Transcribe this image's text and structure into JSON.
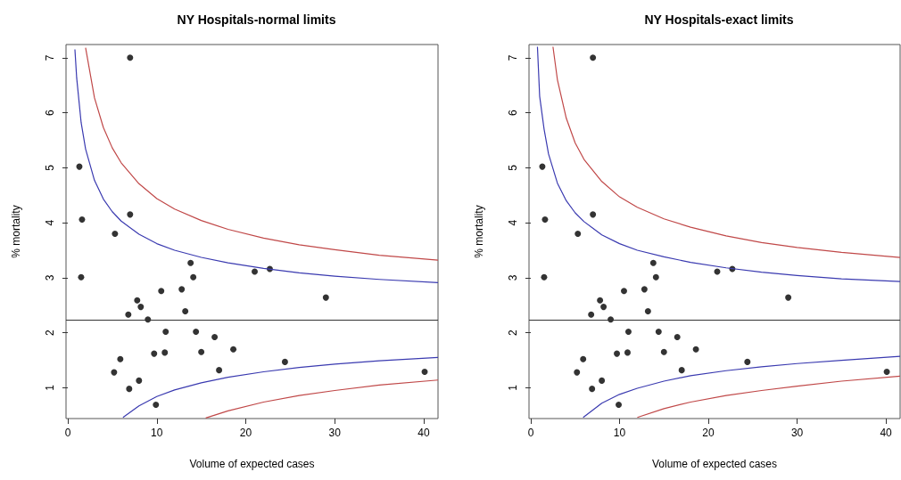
{
  "chart_data": [
    {
      "type": "scatter",
      "title": "NY Hospitals-normal limits",
      "xlabel": "Volume of expected cases",
      "ylabel": "% mortality",
      "xlim": [
        -0.2,
        41.6
      ],
      "ylim": [
        0.44,
        7.24
      ],
      "xticks": [
        0,
        10,
        20,
        30,
        40
      ],
      "yticks": [
        1,
        2,
        3,
        4,
        5,
        6,
        7
      ],
      "grid": false,
      "marker": "circle",
      "ref_lines": [
        {
          "axis": "y",
          "value": 2.23,
          "color": "#333333"
        }
      ],
      "series": [
        {
          "color": "#000000",
          "x": [
            7.0,
            1.3,
            1.6,
            7.0,
            5.3,
            1.5,
            13.8,
            14.1,
            21.0,
            22.7,
            29.0,
            10.5,
            12.8,
            7.8,
            8.2,
            6.8,
            13.2,
            9.0,
            11.0,
            14.4,
            16.5,
            18.6,
            9.7,
            10.9,
            15.0,
            5.9,
            5.2,
            8.0,
            6.9,
            9.9,
            17.0,
            24.4,
            40.1
          ],
          "values": [
            7.0,
            5.02,
            4.06,
            4.15,
            3.8,
            3.01,
            3.27,
            3.01,
            3.11,
            3.16,
            2.64,
            2.76,
            2.79,
            2.59,
            2.47,
            2.33,
            2.39,
            2.24,
            2.02,
            2.02,
            1.92,
            1.7,
            1.62,
            1.64,
            1.65,
            1.52,
            1.28,
            1.13,
            0.98,
            0.69,
            1.32,
            1.47,
            1.29
          ]
        },
        {
          "type": "line",
          "marker": "none",
          "color": "#3a3ab0",
          "x": [
            0.8,
            1,
            1.5,
            2,
            3,
            4,
            5,
            6,
            8,
            10,
            12,
            15,
            18,
            22,
            26,
            30,
            35,
            41.6
          ],
          "values": [
            7.15,
            6.63,
            5.82,
            5.34,
            4.77,
            4.43,
            4.2,
            4.03,
            3.79,
            3.62,
            3.5,
            3.37,
            3.27,
            3.17,
            3.09,
            3.03,
            2.97,
            2.91
          ]
        },
        {
          "type": "line",
          "marker": "none",
          "color": "#c04848",
          "x": [
            2,
            3,
            4,
            5,
            6,
            8,
            10,
            12,
            15,
            18,
            22,
            26,
            30,
            35,
            41.6
          ],
          "values": [
            7.18,
            6.27,
            5.73,
            5.36,
            5.09,
            4.71,
            4.44,
            4.25,
            4.04,
            3.88,
            3.72,
            3.6,
            3.51,
            3.41,
            3.32
          ]
        },
        {
          "type": "line",
          "marker": "none",
          "color": "#3a3ab0",
          "x": [
            6.2,
            8,
            10,
            12,
            15,
            18,
            22,
            26,
            30,
            35,
            41.6
          ],
          "values": [
            0.46,
            0.67,
            0.84,
            0.96,
            1.09,
            1.19,
            1.29,
            1.37,
            1.43,
            1.49,
            1.55
          ]
        },
        {
          "type": "line",
          "marker": "none",
          "color": "#c04848",
          "x": [
            15.5,
            18,
            22,
            26,
            30,
            35,
            41.6
          ],
          "values": [
            0.45,
            0.58,
            0.74,
            0.86,
            0.95,
            1.05,
            1.14
          ]
        }
      ]
    },
    {
      "type": "scatter",
      "title": "NY Hospitals-exact limits",
      "xlabel": "Volume of expected cases",
      "ylabel": "% mortality",
      "xlim": [
        -0.2,
        41.6
      ],
      "ylim": [
        0.44,
        7.24
      ],
      "xticks": [
        0,
        10,
        20,
        30,
        40
      ],
      "yticks": [
        1,
        2,
        3,
        4,
        5,
        6,
        7
      ],
      "grid": false,
      "marker": "circle",
      "ref_lines": [
        {
          "axis": "y",
          "value": 2.23,
          "color": "#333333"
        }
      ],
      "series": [
        {
          "color": "#000000",
          "x": [
            7.0,
            1.3,
            1.6,
            7.0,
            5.3,
            1.5,
            13.8,
            14.1,
            21.0,
            22.7,
            29.0,
            10.5,
            12.8,
            7.8,
            8.2,
            6.8,
            13.2,
            9.0,
            11.0,
            14.4,
            16.5,
            18.6,
            9.7,
            10.9,
            15.0,
            5.9,
            5.2,
            8.0,
            6.9,
            9.9,
            17.0,
            24.4,
            40.1
          ],
          "values": [
            7.0,
            5.02,
            4.06,
            4.15,
            3.8,
            3.01,
            3.27,
            3.01,
            3.11,
            3.16,
            2.64,
            2.76,
            2.79,
            2.59,
            2.47,
            2.33,
            2.39,
            2.24,
            2.02,
            2.02,
            1.92,
            1.7,
            1.62,
            1.64,
            1.65,
            1.52,
            1.28,
            1.13,
            0.98,
            0.69,
            1.32,
            1.47,
            1.29
          ]
        },
        {
          "type": "line",
          "marker": "none",
          "color": "#3a3ab0",
          "x": [
            0.75,
            1,
            1.5,
            2,
            3,
            4,
            5,
            6,
            8,
            10,
            12,
            15,
            18,
            22,
            26,
            30,
            35,
            41.6
          ],
          "values": [
            7.2,
            6.3,
            5.7,
            5.25,
            4.72,
            4.4,
            4.18,
            4.02,
            3.78,
            3.62,
            3.5,
            3.38,
            3.28,
            3.18,
            3.1,
            3.04,
            2.98,
            2.93
          ]
        },
        {
          "type": "line",
          "marker": "none",
          "color": "#c04848",
          "x": [
            2.5,
            3,
            4,
            5,
            6,
            8,
            10,
            12,
            15,
            18,
            22,
            26,
            30,
            35,
            41.6
          ],
          "values": [
            7.2,
            6.6,
            5.9,
            5.45,
            5.15,
            4.75,
            4.47,
            4.28,
            4.07,
            3.92,
            3.76,
            3.64,
            3.55,
            3.46,
            3.37
          ]
        },
        {
          "type": "line",
          "marker": "none",
          "color": "#3a3ab0",
          "x": [
            5.9,
            8,
            10,
            12,
            15,
            18,
            22,
            26,
            30,
            35,
            41.6
          ],
          "values": [
            0.46,
            0.72,
            0.88,
            0.99,
            1.12,
            1.22,
            1.31,
            1.38,
            1.44,
            1.5,
            1.57
          ]
        },
        {
          "type": "line",
          "marker": "none",
          "color": "#c04848",
          "x": [
            12,
            15,
            18,
            22,
            26,
            30,
            35,
            41.6
          ],
          "values": [
            0.46,
            0.62,
            0.74,
            0.86,
            0.95,
            1.03,
            1.12,
            1.21
          ]
        }
      ]
    }
  ]
}
